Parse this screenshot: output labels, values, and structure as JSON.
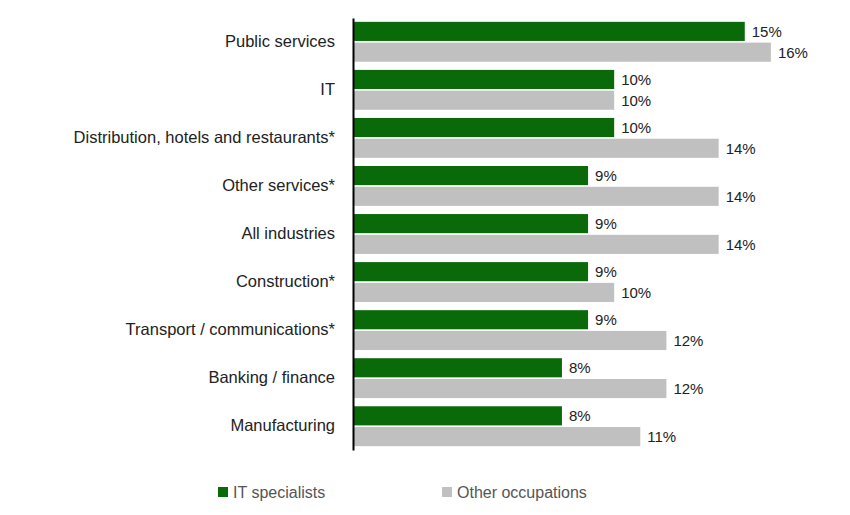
{
  "chart_data": {
    "type": "bar",
    "orientation": "horizontal",
    "categories": [
      "Public services",
      "IT",
      "Distribution, hotels and restaurants*",
      "Other services*",
      "All industries",
      "Construction*",
      "Transport / communications*",
      "Banking / finance",
      "Manufacturing"
    ],
    "series": [
      {
        "name": "IT specialists",
        "color": "#0a6a0a",
        "values": [
          15,
          10,
          10,
          9,
          9,
          9,
          9,
          8,
          8
        ],
        "value_labels": [
          "15%",
          "10%",
          "10%",
          "9%",
          "9%",
          "9%",
          "9%",
          "8%",
          "8%"
        ]
      },
      {
        "name": "Other occupations",
        "color": "#c0c0c0",
        "values": [
          16,
          10,
          14,
          14,
          14,
          10,
          12,
          12,
          11
        ],
        "value_labels": [
          "16%",
          "10%",
          "14%",
          "14%",
          "14%",
          "10%",
          "12%",
          "12%",
          "11%"
        ]
      }
    ],
    "xlim": [
      0,
      17
    ],
    "data_labels": true,
    "tick_labels": "y",
    "legend": "bottom"
  }
}
